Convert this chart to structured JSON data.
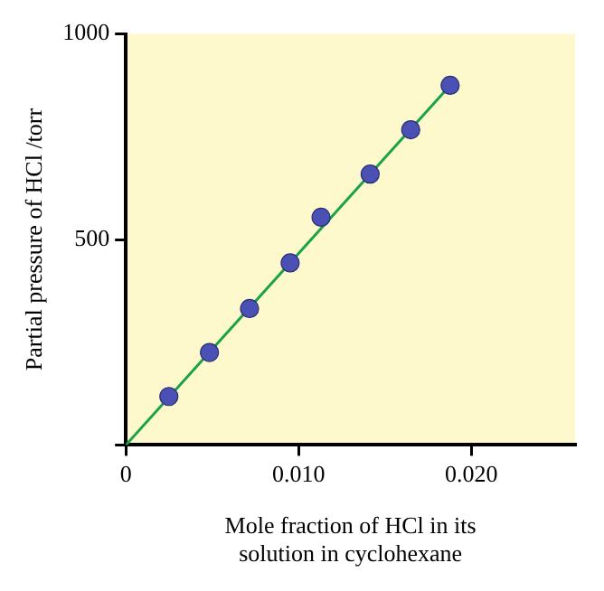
{
  "chart_data": {
    "type": "scatter",
    "xlabel": "Mole fraction of HCl in its\nsolution in cyclohexane",
    "ylabel": "Partial pressure of HCl /torr",
    "xlim": [
      0,
      0.026
    ],
    "ylim": [
      0,
      1000
    ],
    "xticks": [
      0,
      {
        "value": 0.01,
        "label": "0.010"
      },
      {
        "value": 0.02,
        "label": "0.020"
      }
    ],
    "yticks": [
      {
        "value": 0,
        "label": null
      },
      500,
      1000
    ],
    "grid": false,
    "legend": false,
    "marker": "circle",
    "series": [
      {
        "color": "#4a50b4",
        "x": [
          0.00249,
          0.00484,
          0.00716,
          0.00951,
          0.0113,
          0.01414,
          0.01649,
          0.01877
        ],
        "values": [
          118,
          225,
          332,
          443,
          554,
          659,
          767,
          875
        ]
      },
      {
        "type": "line",
        "color": "#1aa24a",
        "line_style": "solid",
        "marker": "none",
        "x": [
          0,
          0.01877
        ],
        "values": [
          0,
          875
        ]
      }
    ]
  }
}
